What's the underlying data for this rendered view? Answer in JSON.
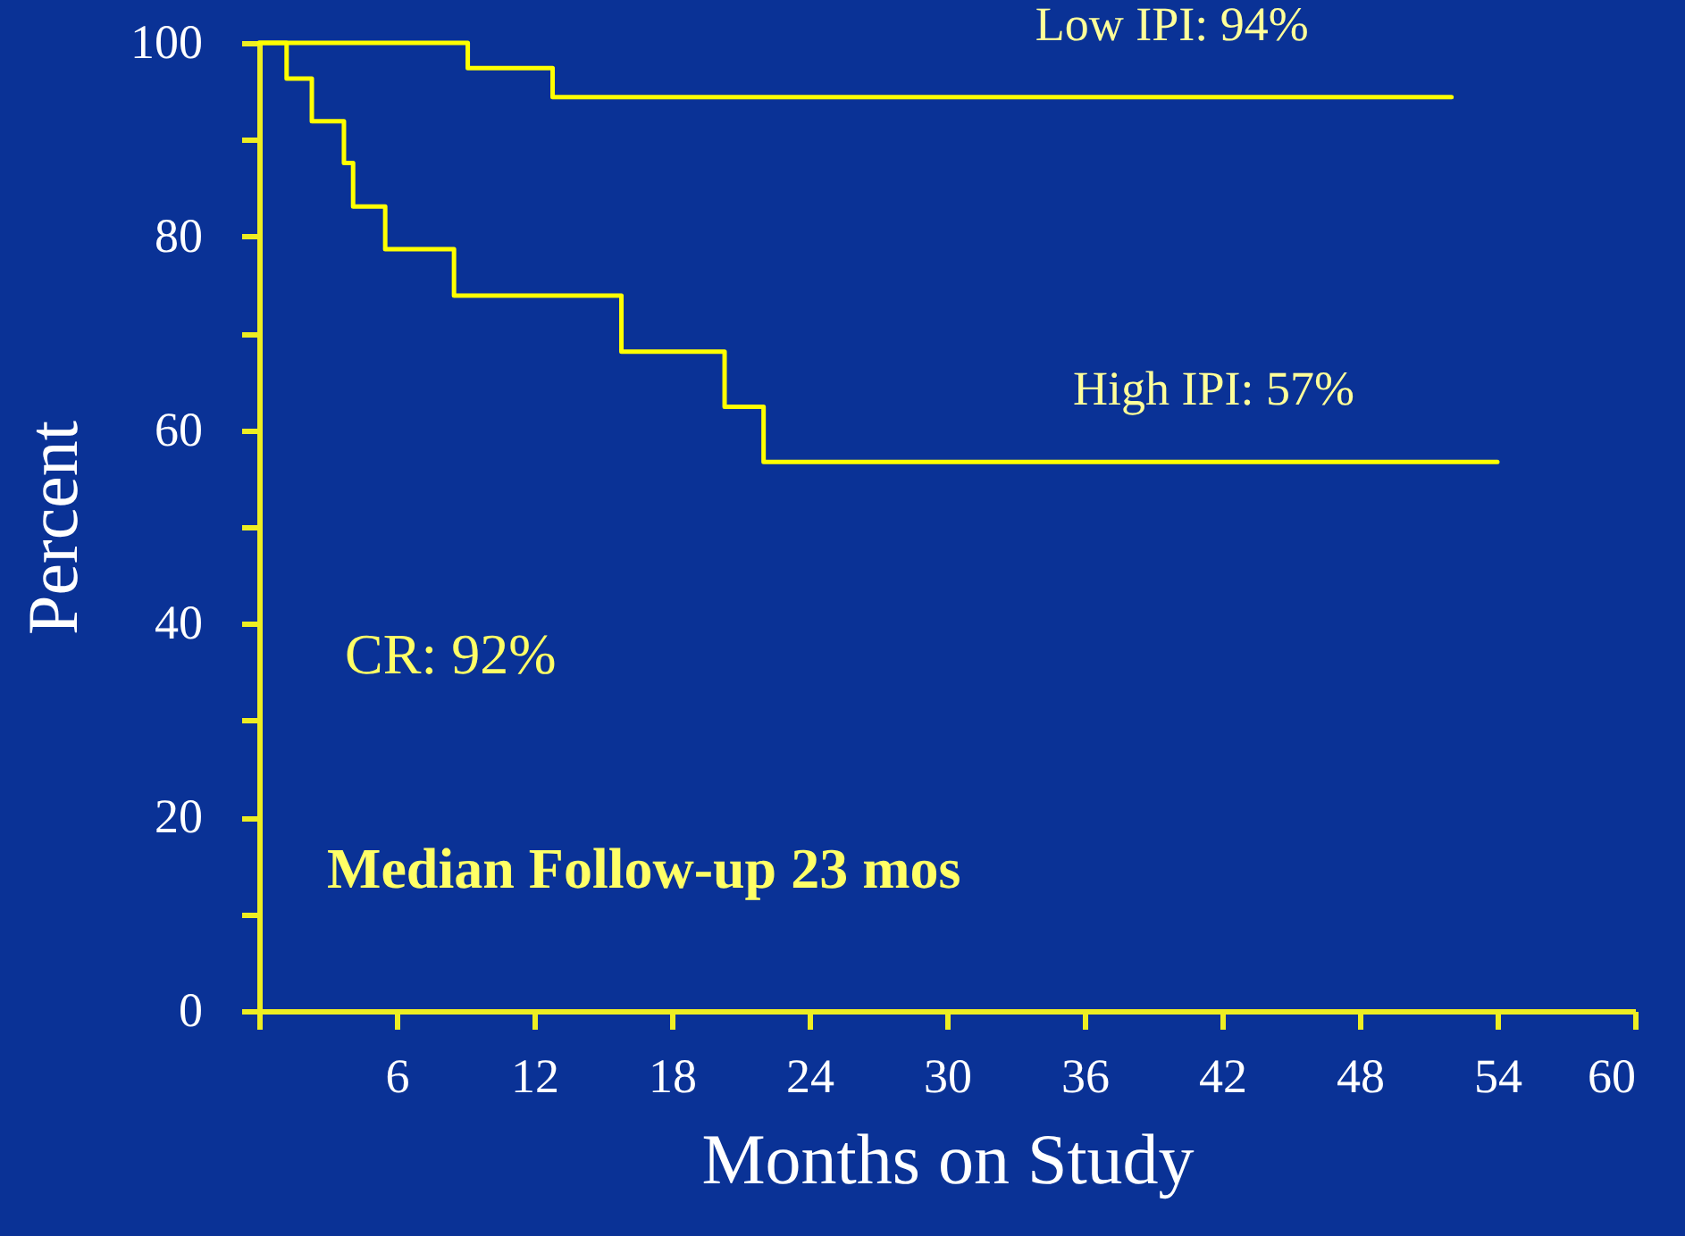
{
  "chart_data": {
    "type": "step",
    "xlabel": "Months on Study",
    "ylabel": "Percent",
    "xlim": [
      0,
      60
    ],
    "xticks": [
      {
        "value": 0,
        "label": null
      },
      6,
      12,
      18,
      24,
      30,
      36,
      42,
      48,
      54,
      60
    ],
    "ylim": [
      0,
      100
    ],
    "yticks": [
      0,
      {
        "value": 10,
        "label": null
      },
      20,
      {
        "value": 30,
        "label": null
      },
      40,
      {
        "value": 50,
        "label": null
      },
      60,
      {
        "value": 70,
        "label": null
      },
      80,
      {
        "value": 90,
        "label": null
      },
      100
    ],
    "grid": false,
    "series": [
      {
        "name": "Low IPI: 94%",
        "color": "#ffff00",
        "x": [
          0,
          9.1,
          12.8,
          52
        ],
        "values": [
          100,
          97.4,
          94.4,
          94.4
        ]
      },
      {
        "name": "High IPI: 57%",
        "color": "#ffff00",
        "x": [
          0,
          1.2,
          2.3,
          3.7,
          4.1,
          5.5,
          8.5,
          15.8,
          20.3,
          22.0,
          54
        ],
        "values": [
          100,
          96.3,
          91.9,
          87.6,
          83.1,
          78.7,
          73.9,
          68.1,
          62.4,
          56.7,
          56.7
        ]
      }
    ],
    "annotations": [
      "CR: 92%",
      "Median Follow-up 23 mos"
    ]
  }
}
